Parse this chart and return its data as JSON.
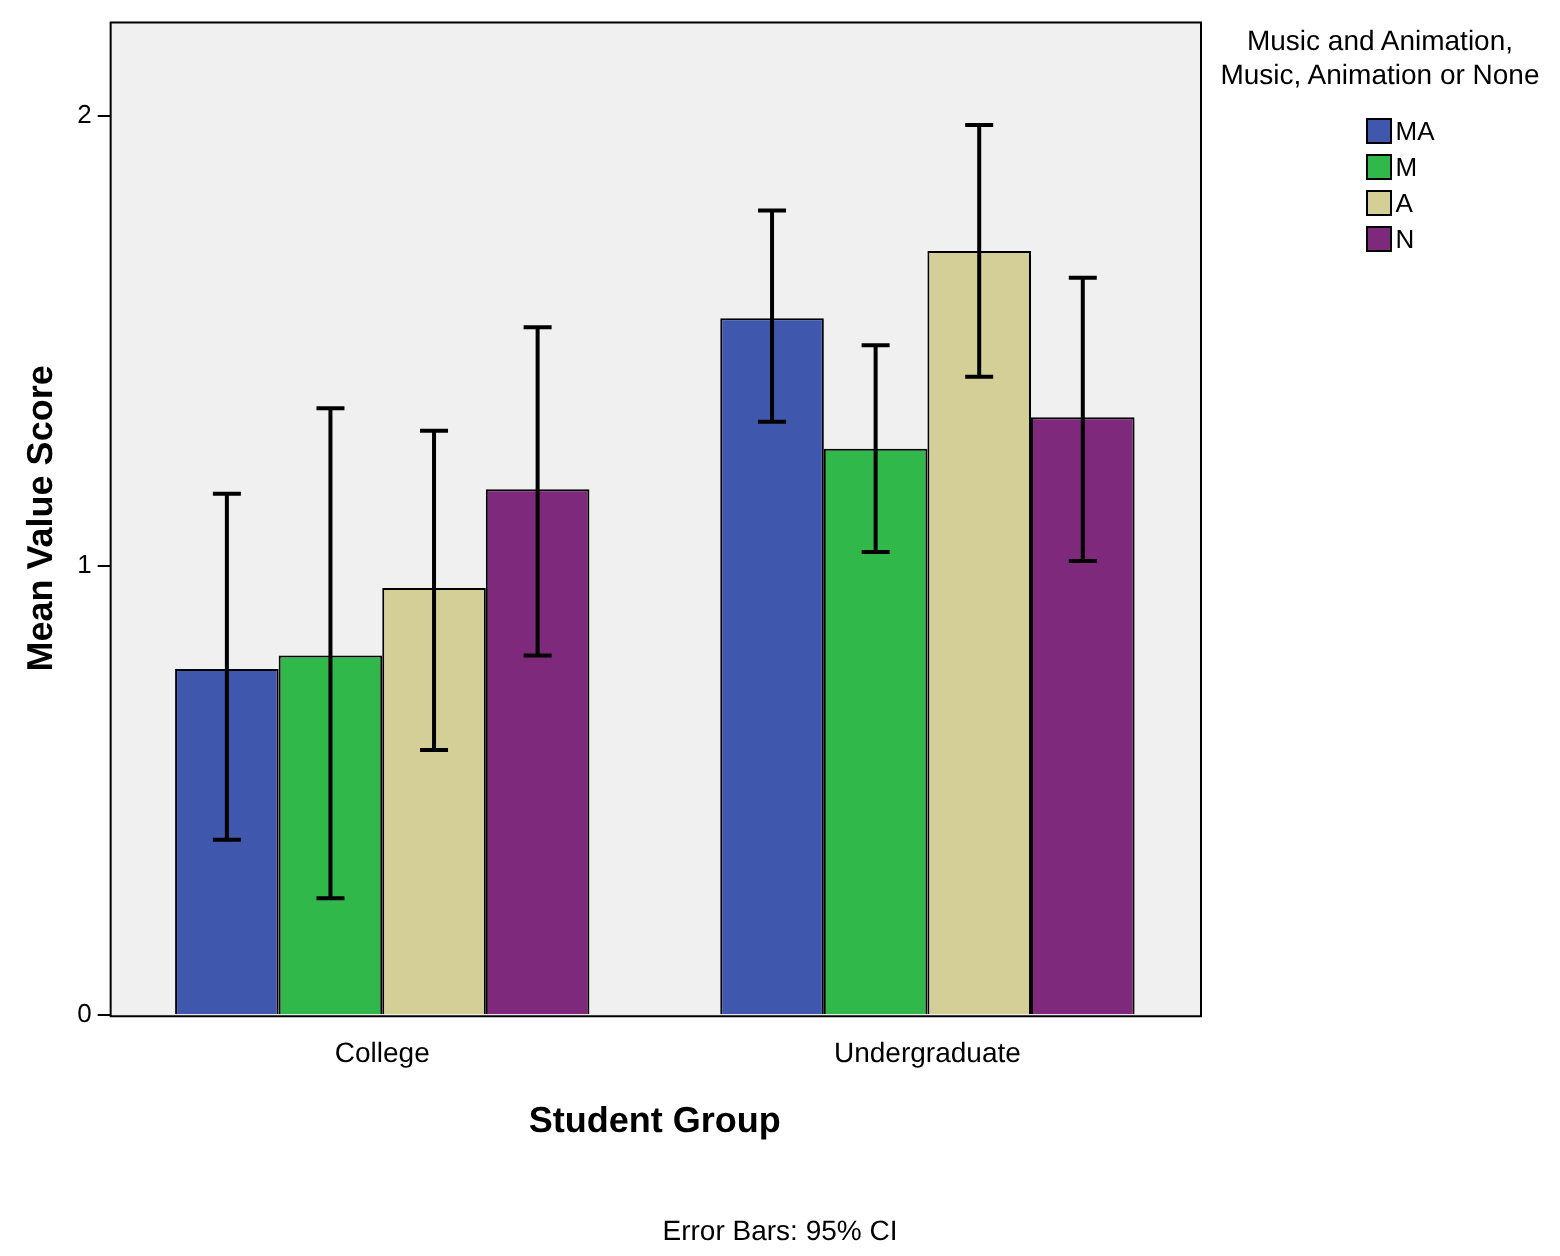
{
  "chart_data": {
    "type": "bar",
    "xlabel": "Student Group",
    "ylabel": "Mean Value Score",
    "legend_title": "Music and Animation, Music, Animation or None",
    "legend": "right",
    "grid": false,
    "categories": [
      "College",
      "Undergraduate"
    ],
    "series": [
      {
        "name": "MA",
        "color": "#3f58ad",
        "values": [
          0.77,
          1.55
        ],
        "errors": [
          [
            0.39,
            1.16
          ],
          [
            1.32,
            1.79
          ]
        ]
      },
      {
        "name": "M",
        "color": "#31b84a",
        "values": [
          0.8,
          1.26
        ],
        "errors": [
          [
            0.26,
            1.35
          ],
          [
            1.03,
            1.49
          ]
        ]
      },
      {
        "name": "A",
        "color": "#d4cf97",
        "values": [
          0.95,
          1.7
        ],
        "errors": [
          [
            0.59,
            1.3
          ],
          [
            1.42,
            1.98
          ]
        ]
      },
      {
        "name": "N",
        "color": "#7e297c",
        "values": [
          1.17,
          1.33
        ],
        "errors": [
          [
            0.8,
            1.53
          ],
          [
            1.01,
            1.64
          ]
        ]
      }
    ],
    "ylim": [
      0,
      2.21
    ],
    "yticks": [
      0,
      1,
      2
    ],
    "annotations": [
      "Error Bars: 95% CI"
    ]
  }
}
